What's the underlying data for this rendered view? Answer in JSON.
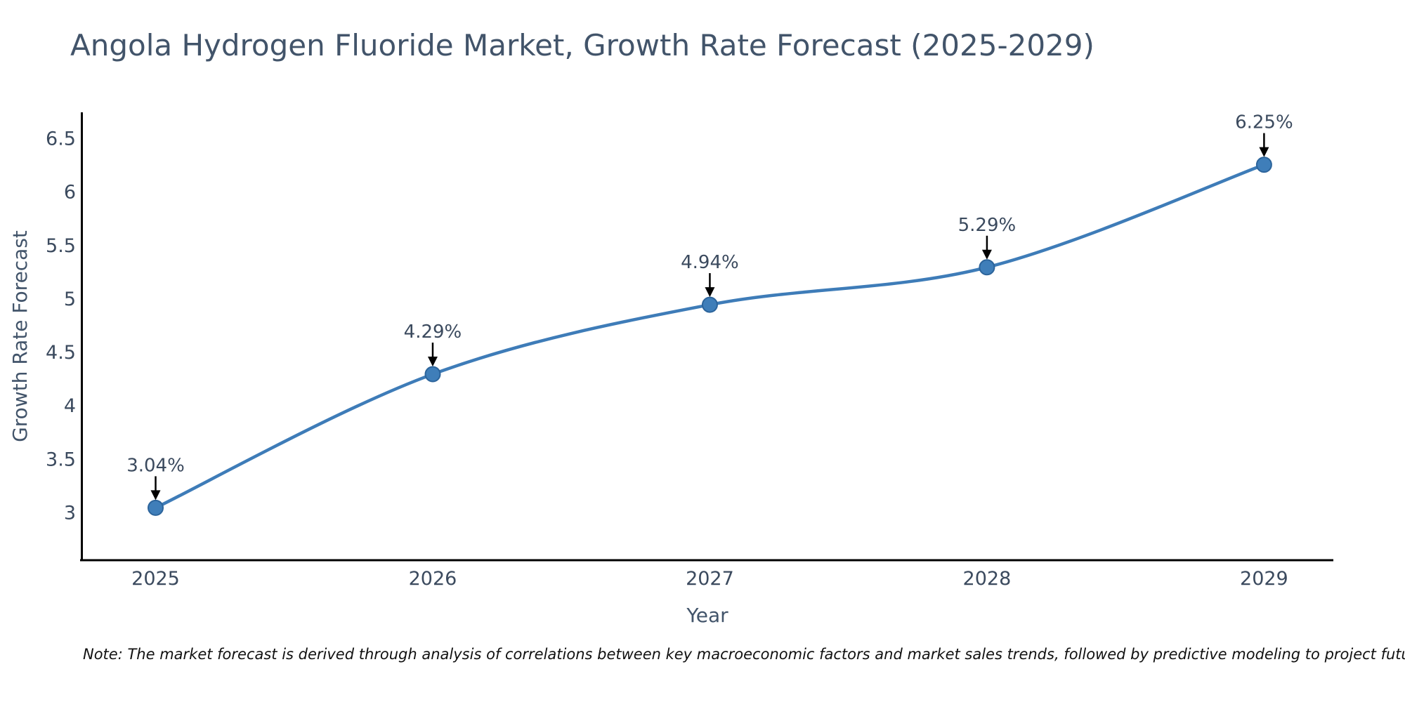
{
  "chart_data": {
    "type": "line",
    "title": "Angola Hydrogen Fluoride Market, Growth Rate Forecast (2025-2029)",
    "xlabel": "Year",
    "ylabel": "Growth Rate Forecast",
    "note": "Note: The market forecast is derived through analysis of correlations between key macroeconomic factors and market sales trends, followed by predictive modeling to project future sales",
    "x": [
      2025,
      2026,
      2027,
      2028,
      2029
    ],
    "series": [
      {
        "name": "Growth Rate Forecast",
        "values": [
          3.04,
          4.29,
          4.94,
          5.29,
          6.25
        ]
      }
    ],
    "point_labels": [
      "3.04%",
      "4.29%",
      "4.94%",
      "5.29%",
      "6.25%"
    ],
    "xticks": [
      "2025",
      "2026",
      "2027",
      "2028",
      "2029"
    ],
    "yticks": [
      3,
      3.5,
      4,
      4.5,
      5,
      5.5,
      6,
      6.5
    ],
    "xlim": [
      2024.73,
      2029.25
    ],
    "ylim": [
      2.55,
      6.74
    ],
    "grid": false,
    "legend": false,
    "colors": {
      "line": "#3e7cb8",
      "marker_fill": "#3f7eb9",
      "marker_edge": "#2c649b",
      "spine": "#000000",
      "arrow": "#000000",
      "tick_text": "#3b4a5e",
      "annotation_text": "#3b4a5e",
      "axis_title_text": "#42546a"
    }
  }
}
